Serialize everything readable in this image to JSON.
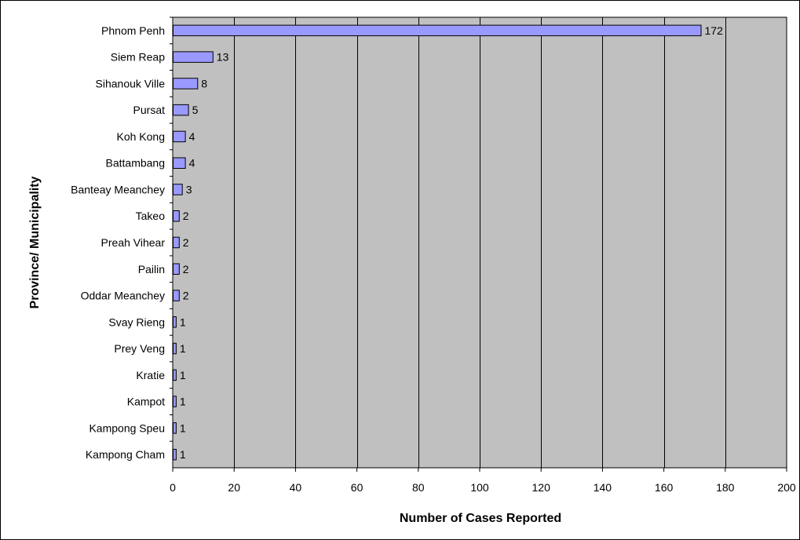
{
  "chart_data": {
    "type": "bar",
    "orientation": "horizontal",
    "categories": [
      "Phnom Penh",
      "Siem Reap",
      "Sihanouk Ville",
      "Pursat",
      "Koh Kong",
      "Battambang",
      "Banteay Meanchey",
      "Takeo",
      "Preah Vihear",
      "Pailin",
      "Oddar Meanchey",
      "Svay Rieng",
      "Prey Veng",
      "Kratie",
      "Kampot",
      "Kampong Speu",
      "Kampong Cham"
    ],
    "values": [
      172,
      13,
      8,
      5,
      4,
      4,
      3,
      2,
      2,
      2,
      2,
      1,
      1,
      1,
      1,
      1,
      1
    ],
    "xlabel": "Number of Cases Reported",
    "ylabel": "Province/ Municipality",
    "xlim": [
      0,
      200
    ],
    "xticks": [
      0,
      20,
      40,
      60,
      80,
      100,
      120,
      140,
      160,
      180,
      200
    ],
    "grid": true,
    "data_labels": true,
    "colors": {
      "plot_background": "#c0c0c0",
      "bar_fill": "#9999ff",
      "bar_stroke": "#000000",
      "gridline": "#000000",
      "border": "#000000"
    }
  }
}
